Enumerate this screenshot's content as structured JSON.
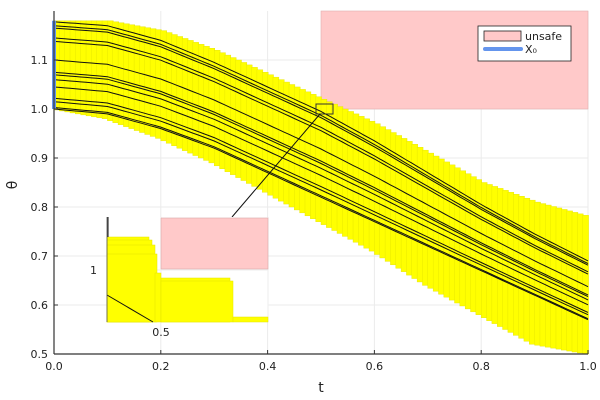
{
  "chart_data": {
    "type": "line",
    "title": "",
    "xlabel": "t",
    "ylabel": "θ",
    "xlim": [
      0.0,
      1.0
    ],
    "ylim": [
      0.5,
      1.2
    ],
    "x_ticks": [
      "0.0",
      "0.2",
      "0.4",
      "0.6",
      "0.8",
      "1.0"
    ],
    "y_ticks": [
      "0.5",
      "0.6",
      "0.7",
      "0.8",
      "0.9",
      "1.0",
      "1.1"
    ],
    "grid": true,
    "legend_position": "top-right",
    "legend": [
      {
        "label": "unsafe",
        "type": "box",
        "color": "#ffc9c9"
      },
      {
        "label": "X₀",
        "type": "line",
        "color": "#6495ed"
      }
    ],
    "unsafe_region": {
      "t": [
        0.5,
        1.0
      ],
      "theta": [
        1.0,
        1.2
      ],
      "color": "#ffc9c9"
    },
    "initial_set_X0": {
      "t": 0.0,
      "theta": [
        1.0,
        1.18
      ],
      "color": "#6495ed"
    },
    "reach_tube": {
      "color": "#ffff00",
      "t": [
        0.0,
        0.1,
        0.2,
        0.3,
        0.4,
        0.5,
        0.6,
        0.7,
        0.8,
        0.9,
        1.0
      ],
      "upper": [
        1.18,
        1.18,
        1.16,
        1.12,
        1.07,
        1.02,
        0.97,
        0.91,
        0.85,
        0.81,
        0.78
      ],
      "lower": [
        1.0,
        0.98,
        0.94,
        0.89,
        0.83,
        0.77,
        0.71,
        0.64,
        0.58,
        0.52,
        0.5
      ]
    },
    "trajectory_profiles": {
      "t": [
        0.0,
        0.1,
        0.2,
        0.3,
        0.4,
        0.5,
        0.6,
        0.7,
        0.8,
        0.9,
        1.0
      ],
      "top": [
        1.178,
        1.17,
        1.14,
        1.095,
        1.045,
        0.995,
        0.935,
        0.87,
        0.805,
        0.745,
        0.69
      ],
      "bottom": [
        1.0,
        0.99,
        0.96,
        0.92,
        0.87,
        0.82,
        0.77,
        0.72,
        0.67,
        0.62,
        0.57
      ]
    },
    "trajectories_theta0": [
      1.178,
      1.17,
      1.165,
      1.145,
      1.138,
      1.1,
      1.075,
      1.07,
      1.06,
      1.045,
      1.022,
      1.015,
      1.003,
      1.0
    ],
    "zoom_box": {
      "t": [
        0.49,
        0.52
      ],
      "theta": [
        0.99,
        1.01
      ]
    },
    "inset": {
      "x_ticks": [
        "0.5"
      ],
      "y_ticks": [
        "1"
      ],
      "description": "Magnified view of reach tube near t=0.5, θ=1.0 showing clearance from unsafe set"
    }
  }
}
